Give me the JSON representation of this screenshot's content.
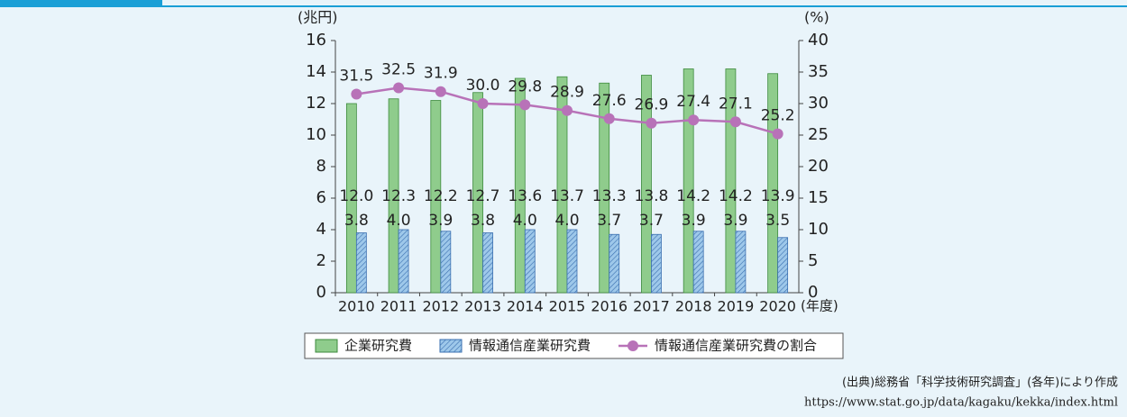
{
  "chart_data": {
    "type": "bar-line",
    "y_label": "(兆円)",
    "y2_label": "(%)",
    "x_label": "(年度)",
    "categories": [
      "2010",
      "2011",
      "2012",
      "2013",
      "2014",
      "2015",
      "2016",
      "2017",
      "2018",
      "2019",
      "2020"
    ],
    "series": [
      {
        "name": "企業研究費",
        "type": "bar",
        "color": "#8fcc8c",
        "values": [
          12.0,
          12.3,
          12.2,
          12.7,
          13.6,
          13.7,
          13.3,
          13.8,
          14.2,
          14.2,
          13.9
        ],
        "value_labels": [
          "12.0",
          "12.3",
          "12.2",
          "12.7",
          "13.6",
          "13.7",
          "13.3",
          "13.8",
          "14.2",
          "14.2",
          "13.9"
        ]
      },
      {
        "name": "情報通信産業研究費",
        "type": "bar",
        "hatch": true,
        "color": "#9ec8ea",
        "values": [
          3.8,
          4.0,
          3.9,
          3.8,
          4.0,
          4.0,
          3.7,
          3.7,
          3.9,
          3.9,
          3.5
        ],
        "value_labels": [
          "3.8",
          "4.0",
          "3.9",
          "3.8",
          "4.0",
          "4.0",
          "3.7",
          "3.7",
          "3.9",
          "3.9",
          "3.5"
        ]
      },
      {
        "name": "情報通信産業研究費の割合",
        "type": "line",
        "axis": "y2",
        "color": "#b872b8",
        "values": [
          31.5,
          32.5,
          31.9,
          30.0,
          29.8,
          28.9,
          27.6,
          26.9,
          27.4,
          27.1,
          25.2
        ],
        "value_labels": [
          "31.5",
          "32.5",
          "31.9",
          "30.0",
          "29.8",
          "28.9",
          "27.6",
          "26.9",
          "27.4",
          "27.1",
          "25.2"
        ]
      }
    ],
    "ylim": [
      0,
      16
    ],
    "yticks": [
      0,
      2,
      4,
      6,
      8,
      10,
      12,
      14,
      16
    ],
    "y2lim": [
      0,
      40
    ],
    "y2ticks": [
      0,
      5,
      10,
      15,
      20,
      25,
      30,
      35,
      40
    ],
    "source": [
      "(出典)総務省「科学技術研究調査」(各年)により作成",
      "https://www.stat.go.jp/data/kagaku/kekka/index.html"
    ]
  }
}
